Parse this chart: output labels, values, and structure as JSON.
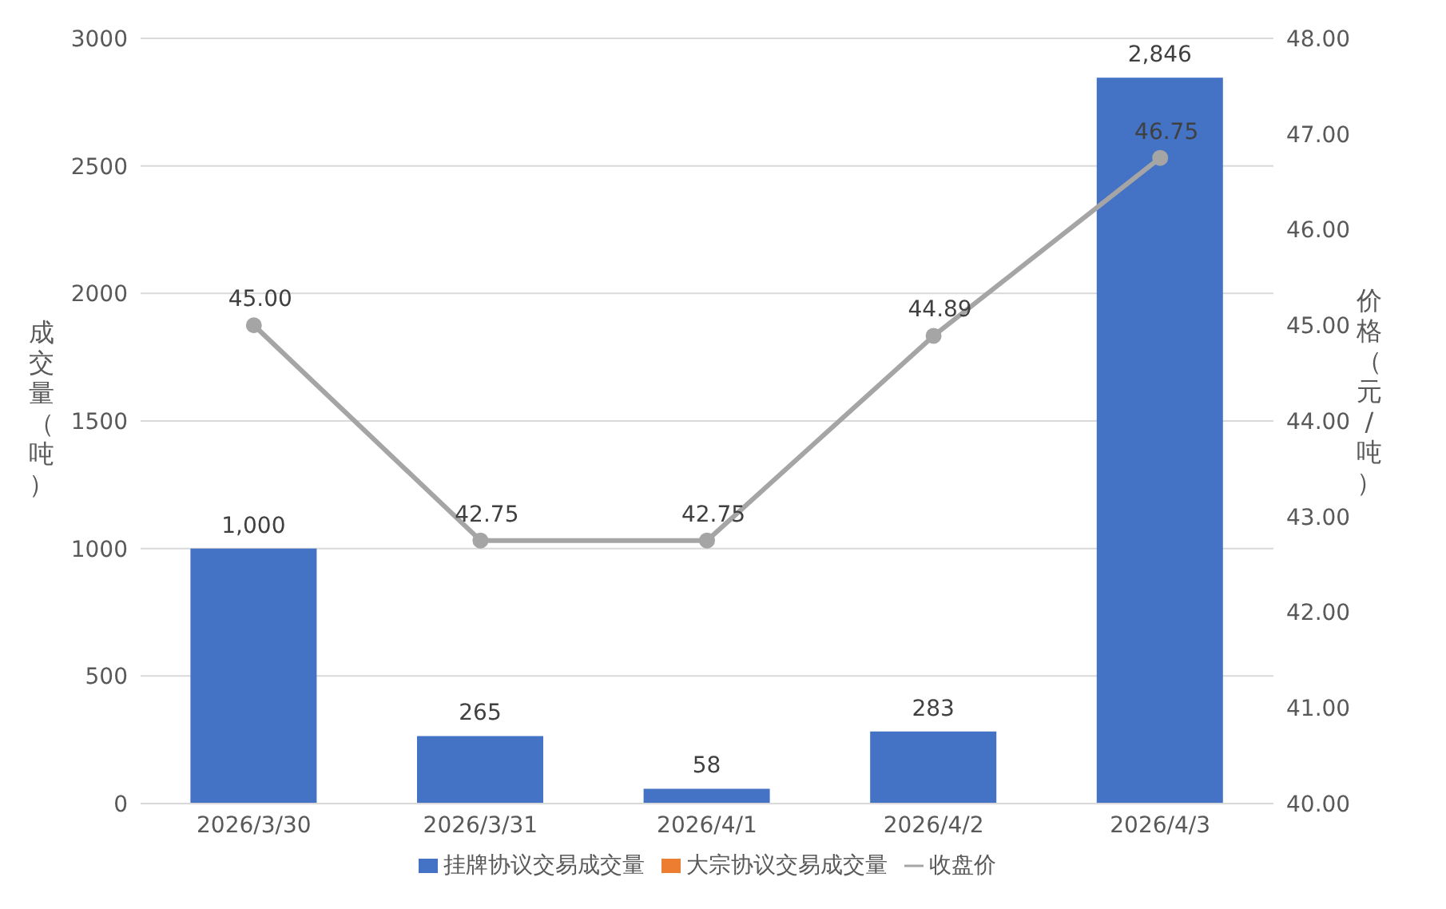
{
  "chart_data": {
    "type": "bar",
    "categories": [
      "2026/3/30",
      "2026/3/31",
      "2026/4/1",
      "2026/4/2",
      "2026/4/3"
    ],
    "ylabel": "成交量（吨）",
    "y2label": "价格（元/吨）",
    "series": [
      {
        "name": "挂牌协议交易成交量",
        "color": "#4472c4",
        "values": [
          1000,
          265,
          58,
          283,
          2846
        ],
        "value_labels": [
          "1,000",
          "265",
          "58",
          "283",
          "2,846"
        ]
      },
      {
        "name": "大宗协议交易成交量",
        "color": "#ed7d31",
        "values": [
          0,
          0,
          0,
          0,
          0
        ]
      },
      {
        "name": "收盘价",
        "type": "line",
        "axis": "y2",
        "color": "#a5a5a5",
        "values": [
          45,
          42.75,
          42.75,
          44.89,
          46.75
        ],
        "value_labels": [
          "45.00",
          "42.75",
          "42.75",
          "44.89",
          "46.75"
        ]
      }
    ],
    "ylim": [
      0,
      3000
    ],
    "yticks": [
      0,
      500,
      1000,
      1500,
      2000,
      2500,
      3000
    ],
    "y2lim": [
      40,
      48
    ],
    "y2ticks": [
      {
        "value": 40,
        "label": "40.00"
      },
      {
        "value": 41,
        "label": "41.00"
      },
      {
        "value": 42,
        "label": "42.00"
      },
      {
        "value": 43,
        "label": "43.00"
      },
      {
        "value": 44,
        "label": "44.00"
      },
      {
        "value": 45,
        "label": "45.00"
      },
      {
        "value": 46,
        "label": "46.00"
      },
      {
        "value": 47,
        "label": "47.00"
      },
      {
        "value": 48,
        "label": "48.00"
      }
    ],
    "grid": "y",
    "legend": "bottom",
    "marker": "circle",
    "line_style": "solid"
  }
}
